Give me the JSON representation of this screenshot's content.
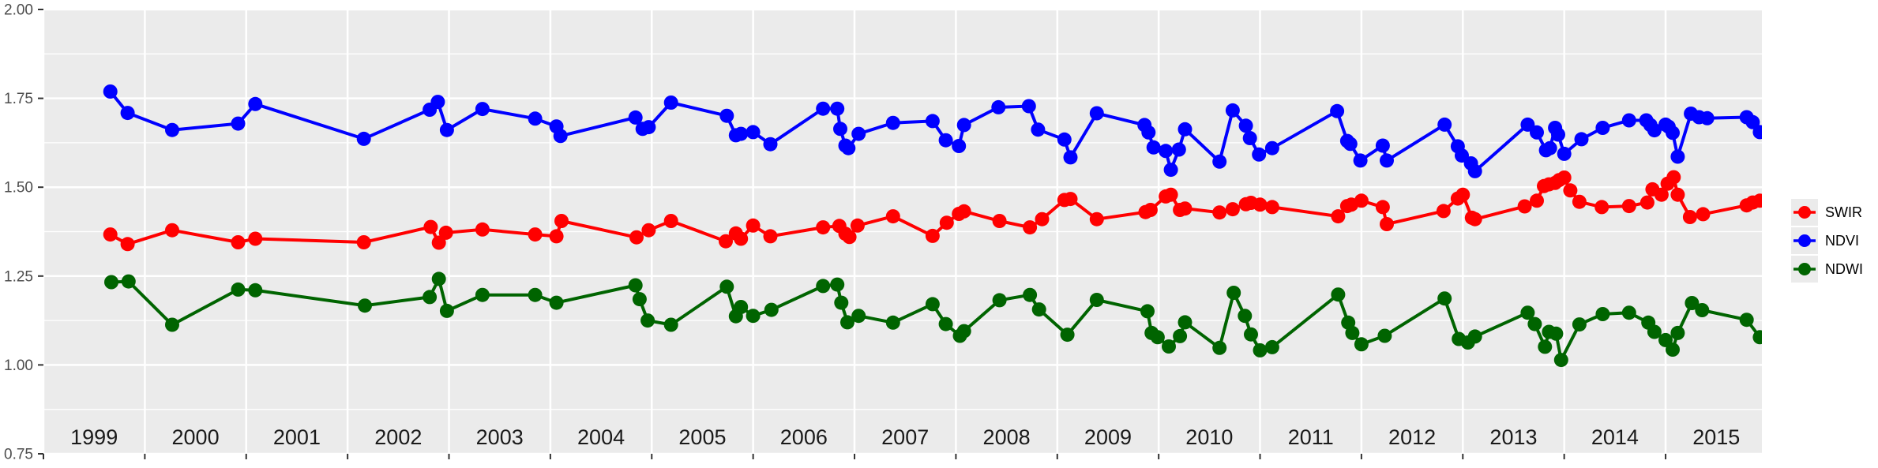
{
  "chart_data": {
    "type": "line",
    "title": "",
    "xlabel": "",
    "ylabel": "",
    "xlim": [
      1999.0,
      2015.95
    ],
    "ylim": [
      0.75,
      2.0
    ],
    "grid": "major-and-minor-horizontal, major-vertical, white on gray panel",
    "legend_position": "right",
    "panel_bg": "#ebebeb",
    "grid_color": "#ffffff",
    "tick_color": "#333333",
    "y_axis_text_color": "#4d4d4d",
    "x_axis_text_color": "#1a1a1a",
    "y_ticks": [
      {
        "value": 2.0,
        "label": "2.00"
      },
      {
        "value": 1.75,
        "label": "1.75"
      },
      {
        "value": 1.5,
        "label": "1.50"
      },
      {
        "value": 1.25,
        "label": "1.25"
      },
      {
        "value": 1.0,
        "label": "1.00"
      },
      {
        "value": 0.75,
        "label": "0.75"
      }
    ],
    "y_minor": [
      1.875,
      1.625,
      1.375,
      1.125,
      0.875
    ],
    "x_ticks": [
      1999,
      2000,
      2001,
      2002,
      2003,
      2004,
      2005,
      2006,
      2007,
      2008,
      2009,
      2010,
      2011,
      2012,
      2013,
      2014,
      2015
    ],
    "x_band_labels": [
      "1999",
      "2000",
      "2001",
      "2002",
      "2003",
      "2004",
      "2005",
      "2006",
      "2007",
      "2008",
      "2009",
      "2010",
      "2011",
      "2012",
      "2013",
      "2014",
      "2015"
    ],
    "series": [
      {
        "name": "SWIR",
        "color": "#ff0000",
        "points": [
          [
            1999.66,
            1.367
          ],
          [
            1999.83,
            1.34
          ],
          [
            2000.27,
            1.379
          ],
          [
            2000.92,
            1.345
          ],
          [
            2001.09,
            1.355
          ],
          [
            2002.16,
            1.345
          ],
          [
            2002.82,
            1.388
          ],
          [
            2002.9,
            1.344
          ],
          [
            2002.97,
            1.372
          ],
          [
            2003.33,
            1.381
          ],
          [
            2003.85,
            1.367
          ],
          [
            2004.06,
            1.362
          ],
          [
            2004.11,
            1.405
          ],
          [
            2004.85,
            1.359
          ],
          [
            2004.97,
            1.379
          ],
          [
            2005.19,
            1.405
          ],
          [
            2005.73,
            1.348
          ],
          [
            2005.83,
            1.37
          ],
          [
            2005.88,
            1.355
          ],
          [
            2006.0,
            1.392
          ],
          [
            2006.17,
            1.362
          ],
          [
            2006.69,
            1.387
          ],
          [
            2006.85,
            1.391
          ],
          [
            2006.91,
            1.369
          ],
          [
            2006.95,
            1.36
          ],
          [
            2007.03,
            1.392
          ],
          [
            2007.38,
            1.418
          ],
          [
            2007.77,
            1.363
          ],
          [
            2007.91,
            1.4
          ],
          [
            2008.03,
            1.425
          ],
          [
            2008.08,
            1.432
          ],
          [
            2008.43,
            1.405
          ],
          [
            2008.73,
            1.387
          ],
          [
            2008.85,
            1.41
          ],
          [
            2009.07,
            1.464
          ],
          [
            2009.13,
            1.467
          ],
          [
            2009.39,
            1.41
          ],
          [
            2009.87,
            1.43
          ],
          [
            2009.92,
            1.436
          ],
          [
            2010.07,
            1.474
          ],
          [
            2010.12,
            1.479
          ],
          [
            2010.21,
            1.436
          ],
          [
            2010.26,
            1.44
          ],
          [
            2010.6,
            1.429
          ],
          [
            2010.73,
            1.438
          ],
          [
            2010.86,
            1.452
          ],
          [
            2010.91,
            1.456
          ],
          [
            2011.0,
            1.451
          ],
          [
            2011.12,
            1.444
          ],
          [
            2011.77,
            1.418
          ],
          [
            2011.86,
            1.447
          ],
          [
            2011.9,
            1.451
          ],
          [
            2012.0,
            1.462
          ],
          [
            2012.21,
            1.444
          ],
          [
            2012.25,
            1.396
          ],
          [
            2012.81,
            1.433
          ],
          [
            2012.95,
            1.468
          ],
          [
            2013.0,
            1.479
          ],
          [
            2013.09,
            1.414
          ],
          [
            2013.12,
            1.41
          ],
          [
            2013.61,
            1.446
          ],
          [
            2013.73,
            1.462
          ],
          [
            2013.8,
            1.503
          ],
          [
            2013.85,
            1.508
          ],
          [
            2013.91,
            1.512
          ],
          [
            2013.95,
            1.52
          ],
          [
            2014.0,
            1.527
          ],
          [
            2014.06,
            1.491
          ],
          [
            2014.15,
            1.459
          ],
          [
            2014.37,
            1.444
          ],
          [
            2014.64,
            1.447
          ],
          [
            2014.82,
            1.457
          ],
          [
            2014.87,
            1.494
          ],
          [
            2014.96,
            1.479
          ],
          [
            2015.02,
            1.51
          ],
          [
            2015.08,
            1.528
          ],
          [
            2015.12,
            1.479
          ],
          [
            2015.24,
            1.416
          ],
          [
            2015.37,
            1.424
          ],
          [
            2015.8,
            1.449
          ],
          [
            2015.86,
            1.457
          ],
          [
            2015.93,
            1.462
          ]
        ]
      },
      {
        "name": "NDVI",
        "color": "#0000ff",
        "points": [
          [
            1999.66,
            1.769
          ],
          [
            1999.83,
            1.709
          ],
          [
            2000.27,
            1.661
          ],
          [
            2000.92,
            1.679
          ],
          [
            2001.09,
            1.734
          ],
          [
            2002.16,
            1.636
          ],
          [
            2002.81,
            1.718
          ],
          [
            2002.89,
            1.74
          ],
          [
            2002.98,
            1.661
          ],
          [
            2003.33,
            1.72
          ],
          [
            2003.85,
            1.693
          ],
          [
            2004.06,
            1.671
          ],
          [
            2004.1,
            1.644
          ],
          [
            2004.84,
            1.696
          ],
          [
            2004.91,
            1.664
          ],
          [
            2004.97,
            1.669
          ],
          [
            2005.19,
            1.738
          ],
          [
            2005.74,
            1.701
          ],
          [
            2005.83,
            1.646
          ],
          [
            2005.88,
            1.65
          ],
          [
            2006.0,
            1.655
          ],
          [
            2006.17,
            1.621
          ],
          [
            2006.69,
            1.721
          ],
          [
            2006.83,
            1.721
          ],
          [
            2006.86,
            1.664
          ],
          [
            2006.91,
            1.617
          ],
          [
            2006.94,
            1.61
          ],
          [
            2007.04,
            1.65
          ],
          [
            2007.38,
            1.681
          ],
          [
            2007.77,
            1.686
          ],
          [
            2007.9,
            1.632
          ],
          [
            2008.03,
            1.616
          ],
          [
            2008.08,
            1.675
          ],
          [
            2008.42,
            1.725
          ],
          [
            2008.72,
            1.728
          ],
          [
            2008.81,
            1.662
          ],
          [
            2009.07,
            1.634
          ],
          [
            2009.13,
            1.584
          ],
          [
            2009.39,
            1.708
          ],
          [
            2009.86,
            1.675
          ],
          [
            2009.9,
            1.654
          ],
          [
            2009.95,
            1.612
          ],
          [
            2010.07,
            1.602
          ],
          [
            2010.12,
            1.549
          ],
          [
            2010.2,
            1.606
          ],
          [
            2010.26,
            1.663
          ],
          [
            2010.6,
            1.572
          ],
          [
            2010.73,
            1.716
          ],
          [
            2010.86,
            1.673
          ],
          [
            2010.9,
            1.638
          ],
          [
            2010.99,
            1.592
          ],
          [
            2011.12,
            1.61
          ],
          [
            2011.76,
            1.714
          ],
          [
            2011.86,
            1.63
          ],
          [
            2011.89,
            1.622
          ],
          [
            2011.99,
            1.575
          ],
          [
            2012.21,
            1.617
          ],
          [
            2012.25,
            1.575
          ],
          [
            2012.82,
            1.676
          ],
          [
            2012.95,
            1.615
          ],
          [
            2012.99,
            1.589
          ],
          [
            2013.08,
            1.567
          ],
          [
            2013.12,
            1.545
          ],
          [
            2013.64,
            1.676
          ],
          [
            2013.73,
            1.654
          ],
          [
            2013.82,
            1.604
          ],
          [
            2013.86,
            1.61
          ],
          [
            2013.91,
            1.667
          ],
          [
            2013.94,
            1.648
          ],
          [
            2014.0,
            1.594
          ],
          [
            2014.17,
            1.635
          ],
          [
            2014.38,
            1.667
          ],
          [
            2014.64,
            1.688
          ],
          [
            2014.81,
            1.688
          ],
          [
            2014.85,
            1.675
          ],
          [
            2014.89,
            1.66
          ],
          [
            2015.0,
            1.676
          ],
          [
            2015.03,
            1.67
          ],
          [
            2015.07,
            1.653
          ],
          [
            2015.12,
            1.586
          ],
          [
            2015.25,
            1.707
          ],
          [
            2015.33,
            1.697
          ],
          [
            2015.41,
            1.694
          ],
          [
            2015.8,
            1.697
          ],
          [
            2015.86,
            1.683
          ],
          [
            2015.93,
            1.655
          ]
        ]
      },
      {
        "name": "NDWI",
        "color": "#006400",
        "points": [
          [
            1999.67,
            1.233
          ],
          [
            1999.84,
            1.235
          ],
          [
            2000.27,
            1.113
          ],
          [
            2000.92,
            1.212
          ],
          [
            2001.09,
            1.21
          ],
          [
            2002.17,
            1.167
          ],
          [
            2002.81,
            1.191
          ],
          [
            2002.9,
            1.242
          ],
          [
            2002.98,
            1.152
          ],
          [
            2003.33,
            1.197
          ],
          [
            2003.85,
            1.197
          ],
          [
            2004.06,
            1.175
          ],
          [
            2004.84,
            1.224
          ],
          [
            2004.88,
            1.185
          ],
          [
            2004.96,
            1.125
          ],
          [
            2005.19,
            1.113
          ],
          [
            2005.74,
            1.22
          ],
          [
            2005.83,
            1.137
          ],
          [
            2005.88,
            1.163
          ],
          [
            2006.0,
            1.138
          ],
          [
            2006.18,
            1.155
          ],
          [
            2006.69,
            1.222
          ],
          [
            2006.83,
            1.226
          ],
          [
            2006.87,
            1.175
          ],
          [
            2006.93,
            1.12
          ],
          [
            2007.04,
            1.138
          ],
          [
            2007.38,
            1.119
          ],
          [
            2007.77,
            1.171
          ],
          [
            2007.9,
            1.115
          ],
          [
            2008.04,
            1.082
          ],
          [
            2008.08,
            1.095
          ],
          [
            2008.43,
            1.182
          ],
          [
            2008.73,
            1.197
          ],
          [
            2008.82,
            1.156
          ],
          [
            2009.1,
            1.085
          ],
          [
            2009.39,
            1.183
          ],
          [
            2009.89,
            1.151
          ],
          [
            2009.93,
            1.09
          ],
          [
            2009.99,
            1.078
          ],
          [
            2010.1,
            1.052
          ],
          [
            2010.21,
            1.081
          ],
          [
            2010.26,
            1.12
          ],
          [
            2010.6,
            1.048
          ],
          [
            2010.74,
            1.203
          ],
          [
            2010.85,
            1.138
          ],
          [
            2010.91,
            1.086
          ],
          [
            2011.0,
            1.041
          ],
          [
            2011.12,
            1.05
          ],
          [
            2011.77,
            1.198
          ],
          [
            2011.87,
            1.119
          ],
          [
            2011.91,
            1.09
          ],
          [
            2012.0,
            1.058
          ],
          [
            2012.23,
            1.082
          ],
          [
            2012.82,
            1.187
          ],
          [
            2012.96,
            1.073
          ],
          [
            2013.05,
            1.063
          ],
          [
            2013.12,
            1.08
          ],
          [
            2013.64,
            1.147
          ],
          [
            2013.71,
            1.115
          ],
          [
            2013.81,
            1.051
          ],
          [
            2013.85,
            1.093
          ],
          [
            2013.92,
            1.088
          ],
          [
            2013.97,
            1.014
          ],
          [
            2014.15,
            1.114
          ],
          [
            2014.38,
            1.143
          ],
          [
            2014.64,
            1.147
          ],
          [
            2014.83,
            1.119
          ],
          [
            2014.89,
            1.093
          ],
          [
            2015.0,
            1.07
          ],
          [
            2015.07,
            1.043
          ],
          [
            2015.12,
            1.09
          ],
          [
            2015.26,
            1.174
          ],
          [
            2015.36,
            1.154
          ],
          [
            2015.8,
            1.127
          ],
          [
            2015.93,
            1.078
          ]
        ]
      }
    ]
  }
}
